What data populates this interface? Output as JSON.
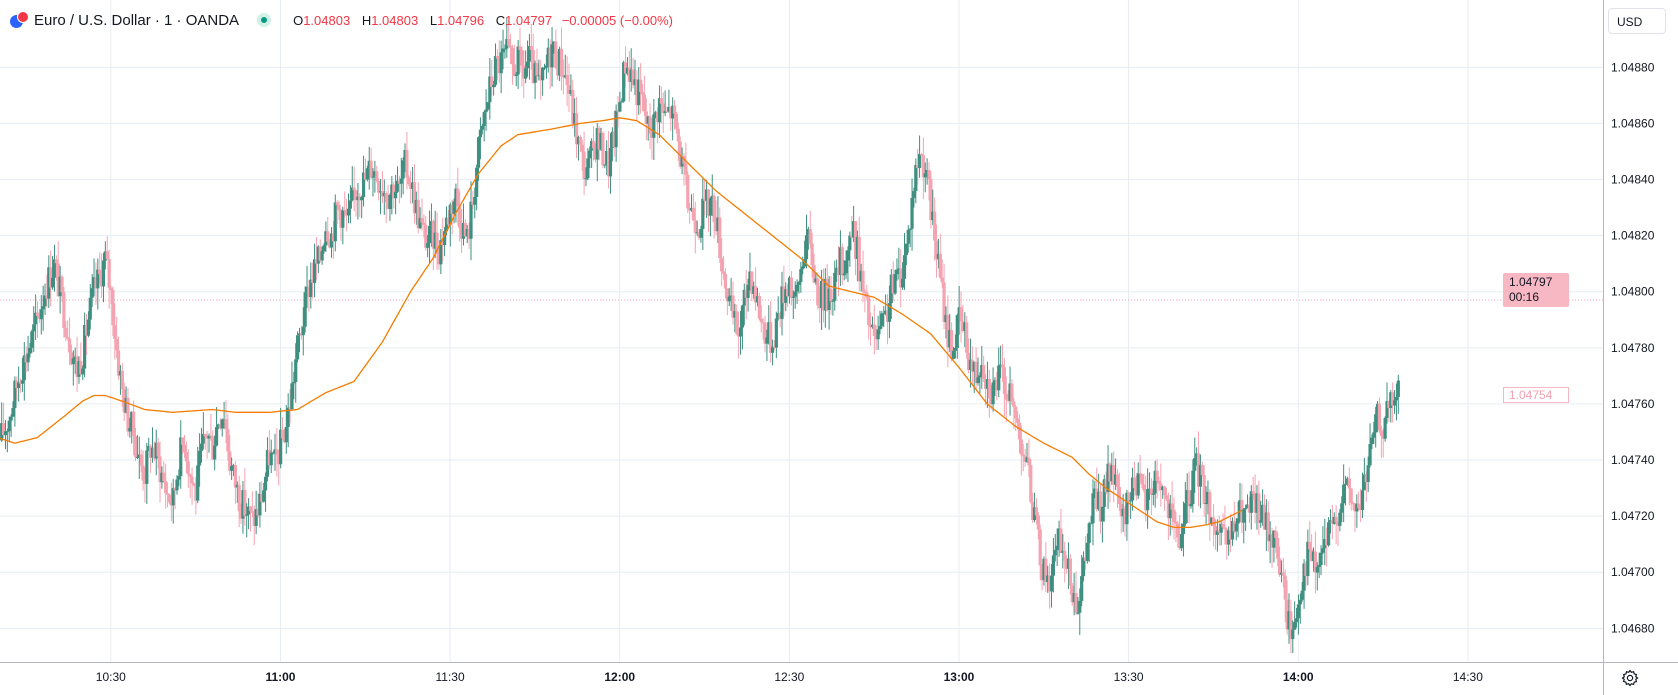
{
  "header": {
    "title": "Euro / U.S. Dollar · 1 · OANDA",
    "ohlc": [
      {
        "key": "O",
        "value": "1.04803"
      },
      {
        "key": "H",
        "value": "1.04803"
      },
      {
        "key": "L",
        "value": "1.04796"
      },
      {
        "key": "C",
        "value": "1.04797"
      }
    ],
    "change": "−0.00005 (−0.00%)"
  },
  "currency_label": "USD",
  "last_price_label": "1.04797",
  "countdown_label": "00:16",
  "ma_label": "1.04754",
  "colors": {
    "up": "#3e8f80",
    "down": "#f4a3b0",
    "ma": "#f57c00",
    "grid": "#e7edf2"
  },
  "chart_data": {
    "type": "candlestick",
    "x_ticks": [
      {
        "label": "10:30",
        "minute": 630,
        "bold": false
      },
      {
        "label": "11:00",
        "minute": 660,
        "bold": true
      },
      {
        "label": "11:30",
        "minute": 690,
        "bold": false
      },
      {
        "label": "12:00",
        "minute": 720,
        "bold": true
      },
      {
        "label": "12:30",
        "minute": 750,
        "bold": false
      },
      {
        "label": "13:00",
        "minute": 780,
        "bold": true
      },
      {
        "label": "13:30",
        "minute": 810,
        "bold": false
      },
      {
        "label": "14:00",
        "minute": 840,
        "bold": true
      },
      {
        "label": "14:30",
        "minute": 870,
        "bold": false
      }
    ],
    "y_ticks": [
      "1.04680",
      "1.04700",
      "1.04720",
      "1.04740",
      "1.04760",
      "1.04780",
      "1.04800",
      "1.04820",
      "1.04840",
      "1.04860",
      "1.04880"
    ],
    "y_range": [
      1.04668,
      1.04904
    ],
    "x_range_minutes": [
      610.4,
      893.9
    ],
    "last_price": 1.04797,
    "ma_last": 1.04754,
    "close_anchors": [
      [
        610,
        1.04745
      ],
      [
        612,
        1.04755
      ],
      [
        614,
        1.04772
      ],
      [
        615.5,
        1.0478
      ],
      [
        617,
        1.0479
      ],
      [
        618.5,
        1.04802
      ],
      [
        620,
        1.0481
      ],
      [
        621.5,
        1.04795
      ],
      [
        623,
        1.0478
      ],
      [
        624,
        1.04772
      ],
      [
        625,
        1.04778
      ],
      [
        626,
        1.0479
      ],
      [
        627,
        1.048
      ],
      [
        628,
        1.04805
      ],
      [
        629,
        1.04812
      ],
      [
        630,
        1.048
      ],
      [
        631,
        1.0478
      ],
      [
        632,
        1.04765
      ],
      [
        633,
        1.04755
      ],
      [
        634,
        1.0475
      ],
      [
        635,
        1.0474
      ],
      [
        636,
        1.04735
      ],
      [
        637,
        1.04745
      ],
      [
        638,
        1.04742
      ],
      [
        639,
        1.04735
      ],
      [
        640,
        1.04728
      ],
      [
        641,
        1.04725
      ],
      [
        642,
        1.0474
      ],
      [
        643,
        1.04748
      ],
      [
        644,
        1.04735
      ],
      [
        645,
        1.04728
      ],
      [
        646,
        1.04742
      ],
      [
        647,
        1.0475
      ],
      [
        648,
        1.04745
      ],
      [
        649,
        1.04755
      ],
      [
        650,
        1.04758
      ],
      [
        651,
        1.0474
      ],
      [
        652,
        1.04732
      ],
      [
        653,
        1.04725
      ],
      [
        654,
        1.04722
      ],
      [
        655,
        1.04718
      ],
      [
        656,
        1.04722
      ],
      [
        657,
        1.0473
      ],
      [
        658,
        1.04742
      ],
      [
        659,
        1.04738
      ],
      [
        660,
        1.04745
      ],
      [
        661,
        1.04752
      ],
      [
        662,
        1.04765
      ],
      [
        663,
        1.0478
      ],
      [
        664,
        1.0479
      ],
      [
        665,
        1.04802
      ],
      [
        666,
        1.04808
      ],
      [
        667,
        1.04812
      ],
      [
        668,
        1.04825
      ],
      [
        669,
        1.0482
      ],
      [
        670,
        1.0483
      ],
      [
        671,
        1.04828
      ],
      [
        672,
        1.04825
      ],
      [
        673,
        1.04835
      ],
      [
        674,
        1.04838
      ],
      [
        675,
        1.0484
      ],
      [
        676,
        1.04845
      ],
      [
        677,
        1.04842
      ],
      [
        678,
        1.04838
      ],
      [
        679,
        1.04835
      ],
      [
        680,
        1.04838
      ],
      [
        681,
        1.04836
      ],
      [
        682,
        1.04845
      ],
      [
        683,
        1.0484
      ],
      [
        684,
        1.0483
      ],
      [
        685,
        1.04822
      ],
      [
        686,
        1.04818
      ],
      [
        687,
        1.0482
      ],
      [
        688,
        1.04815
      ],
      [
        689,
        1.04822
      ],
      [
        690,
        1.0483
      ],
      [
        691,
        1.04835
      ],
      [
        692,
        1.04825
      ],
      [
        693,
        1.04818
      ],
      [
        694,
        1.04832
      ],
      [
        695,
        1.0485
      ],
      [
        696,
        1.04862
      ],
      [
        697,
        1.04872
      ],
      [
        698,
        1.0488
      ],
      [
        699,
        1.04882
      ],
      [
        700,
        1.04885
      ],
      [
        701,
        1.0488
      ],
      [
        702,
        1.04882
      ],
      [
        703,
        1.04878
      ],
      [
        704,
        1.04883
      ],
      [
        705,
        1.04876
      ],
      [
        706,
        1.04872
      ],
      [
        707,
        1.0488
      ],
      [
        708,
        1.04888
      ],
      [
        709,
        1.04883
      ],
      [
        710,
        1.0488
      ],
      [
        711,
        1.04872
      ],
      [
        712,
        1.0486
      ],
      [
        713,
        1.0485
      ],
      [
        714,
        1.04842
      ],
      [
        715,
        1.04848
      ],
      [
        716,
        1.04855
      ],
      [
        717,
        1.0485
      ],
      [
        718,
        1.04845
      ],
      [
        719,
        1.04855
      ],
      [
        720,
        1.04868
      ],
      [
        721,
        1.04882
      ],
      [
        722,
        1.04878
      ],
      [
        723,
        1.04872
      ],
      [
        724,
        1.04868
      ],
      [
        725,
        1.04858
      ],
      [
        726,
        1.0486
      ],
      [
        727,
        1.04868
      ],
      [
        728,
        1.04862
      ],
      [
        729,
        1.04865
      ],
      [
        730,
        1.04858
      ],
      [
        731,
        1.04845
      ],
      [
        732,
        1.04832
      ],
      [
        733,
        1.04828
      ],
      [
        734,
        1.04825
      ],
      [
        735,
        1.0483
      ],
      [
        736,
        1.04832
      ],
      [
        737,
        1.04828
      ],
      [
        738,
        1.04812
      ],
      [
        739,
        1.048
      ],
      [
        740,
        1.0479
      ],
      [
        741,
        1.04785
      ],
      [
        742,
        1.04795
      ],
      [
        743,
        1.04808
      ],
      [
        744,
        1.048
      ],
      [
        745,
        1.0479
      ],
      [
        746,
        1.04785
      ],
      [
        747,
        1.04782
      ],
      [
        748,
        1.04792
      ],
      [
        749,
        1.048
      ],
      [
        750,
        1.04805
      ],
      [
        751,
        1.04795
      ],
      [
        752,
        1.04808
      ],
      [
        753,
        1.0482
      ],
      [
        754,
        1.04812
      ],
      [
        755,
        1.048
      ],
      [
        756,
        1.04798
      ],
      [
        757,
        1.048
      ],
      [
        758,
        1.04803
      ],
      [
        759,
        1.0481
      ],
      [
        760,
        1.04812
      ],
      [
        761,
        1.04822
      ],
      [
        762,
        1.04815
      ],
      [
        763,
        1.048
      ],
      [
        764,
        1.0479
      ],
      [
        765,
        1.04782
      ],
      [
        766,
        1.04785
      ],
      [
        767,
        1.0479
      ],
      [
        768,
        1.048
      ],
      [
        769,
        1.04805
      ],
      [
        770,
        1.04808
      ],
      [
        771,
        1.0482
      ],
      [
        772,
        1.04838
      ],
      [
        773,
        1.0485
      ],
      [
        774,
        1.04845
      ],
      [
        775,
        1.0483
      ],
      [
        776,
        1.04815
      ],
      [
        777,
        1.048
      ],
      [
        778,
        1.04785
      ],
      [
        779,
        1.0478
      ],
      [
        780,
        1.0479
      ],
      [
        781,
        1.04785
      ],
      [
        782,
        1.04775
      ],
      [
        783,
        1.0477
      ],
      [
        784,
        1.04778
      ],
      [
        785,
        1.04768
      ],
      [
        786,
        1.04765
      ],
      [
        787,
        1.0477
      ],
      [
        788,
        1.04768
      ],
      [
        789,
        1.04762
      ],
      [
        790,
        1.04755
      ],
      [
        791,
        1.04748
      ],
      [
        792,
        1.04738
      ],
      [
        793,
        1.04725
      ],
      [
        794,
        1.0471
      ],
      [
        795,
        1.047
      ],
      [
        796,
        1.04698
      ],
      [
        797,
        1.04705
      ],
      [
        798,
        1.04712
      ],
      [
        799,
        1.04702
      ],
      [
        800,
        1.04695
      ],
      [
        801,
        1.0469
      ],
      [
        802,
        1.047
      ],
      [
        803,
        1.04715
      ],
      [
        804,
        1.04728
      ],
      [
        805,
        1.04722
      ],
      [
        806,
        1.0473
      ],
      [
        807,
        1.04738
      ],
      [
        808,
        1.04725
      ],
      [
        809,
        1.04718
      ],
      [
        810,
        1.04725
      ],
      [
        811,
        1.04735
      ],
      [
        812,
        1.0473
      ],
      [
        813,
        1.04725
      ],
      [
        814,
        1.0473
      ],
      [
        815,
        1.04735
      ],
      [
        816,
        1.0473
      ],
      [
        817,
        1.04722
      ],
      [
        818,
        1.04715
      ],
      [
        819,
        1.04712
      ],
      [
        820,
        1.0472
      ],
      [
        821,
        1.0473
      ],
      [
        822,
        1.04738
      ],
      [
        823,
        1.04732
      ],
      [
        824,
        1.04725
      ],
      [
        825,
        1.04718
      ],
      [
        826,
        1.04712
      ],
      [
        827,
        1.0471
      ],
      [
        828,
        1.04712
      ],
      [
        829,
        1.04718
      ],
      [
        830,
        1.04722
      ],
      [
        831,
        1.0472
      ],
      [
        832,
        1.04725
      ],
      [
        833,
        1.04722
      ],
      [
        834,
        1.04718
      ],
      [
        835,
        1.04715
      ],
      [
        836,
        1.0471
      ],
      [
        837,
        1.047
      ],
      [
        838,
        1.04685
      ],
      [
        839,
        1.04678
      ],
      [
        840,
        1.0469
      ],
      [
        841,
        1.04702
      ],
      [
        842,
        1.04708
      ],
      [
        843,
        1.047
      ],
      [
        844,
        1.04705
      ],
      [
        845,
        1.04712
      ],
      [
        846,
        1.04715
      ],
      [
        847,
        1.04722
      ],
      [
        848,
        1.0473
      ],
      [
        849,
        1.04728
      ],
      [
        850,
        1.04722
      ],
      [
        851,
        1.04725
      ],
      [
        852,
        1.04735
      ],
      [
        853,
        1.04745
      ],
      [
        854,
        1.04755
      ],
      [
        855,
        1.04752
      ],
      [
        856,
        1.04758
      ],
      [
        857,
        1.04762
      ],
      [
        858,
        1.04765
      ]
    ],
    "ma_anchors": [
      [
        610,
        1.04748
      ],
      [
        613,
        1.04746
      ],
      [
        617,
        1.04748
      ],
      [
        622,
        1.04756
      ],
      [
        625,
        1.04761
      ],
      [
        627,
        1.04763
      ],
      [
        629,
        1.04763
      ],
      [
        632,
        1.04761
      ],
      [
        636,
        1.04758
      ],
      [
        641,
        1.04757
      ],
      [
        648,
        1.04758
      ],
      [
        652,
        1.04757
      ],
      [
        658,
        1.04757
      ],
      [
        663,
        1.04758
      ],
      [
        668,
        1.04764
      ],
      [
        673,
        1.04768
      ],
      [
        678,
        1.04782
      ],
      [
        683,
        1.048
      ],
      [
        687,
        1.04812
      ],
      [
        691,
        1.04828
      ],
      [
        695,
        1.04842
      ],
      [
        699,
        1.04852
      ],
      [
        702,
        1.04856
      ],
      [
        705,
        1.04857
      ],
      [
        708,
        1.04858
      ],
      [
        713,
        1.0486
      ],
      [
        717,
        1.04861
      ],
      [
        720,
        1.04862
      ],
      [
        723,
        1.04861
      ],
      [
        727,
        1.04856
      ],
      [
        732,
        1.04846
      ],
      [
        737,
        1.04836
      ],
      [
        742,
        1.04828
      ],
      [
        747,
        1.0482
      ],
      [
        752,
        1.04812
      ],
      [
        757,
        1.04802
      ],
      [
        761,
        1.048
      ],
      [
        765,
        1.04798
      ],
      [
        770,
        1.04792
      ],
      [
        775,
        1.04785
      ],
      [
        780,
        1.04773
      ],
      [
        785,
        1.0476
      ],
      [
        790,
        1.04752
      ],
      [
        795,
        1.04746
      ],
      [
        800,
        1.04741
      ],
      [
        803,
        1.04735
      ],
      [
        806,
        1.0473
      ],
      [
        809,
        1.04726
      ],
      [
        812,
        1.04722
      ],
      [
        815,
        1.04718
      ],
      [
        818,
        1.04716
      ],
      [
        821,
        1.04716
      ],
      [
        824,
        1.04717
      ],
      [
        826,
        1.04718
      ],
      [
        828,
        1.0472
      ],
      [
        830,
        1.04722
      ]
    ]
  }
}
